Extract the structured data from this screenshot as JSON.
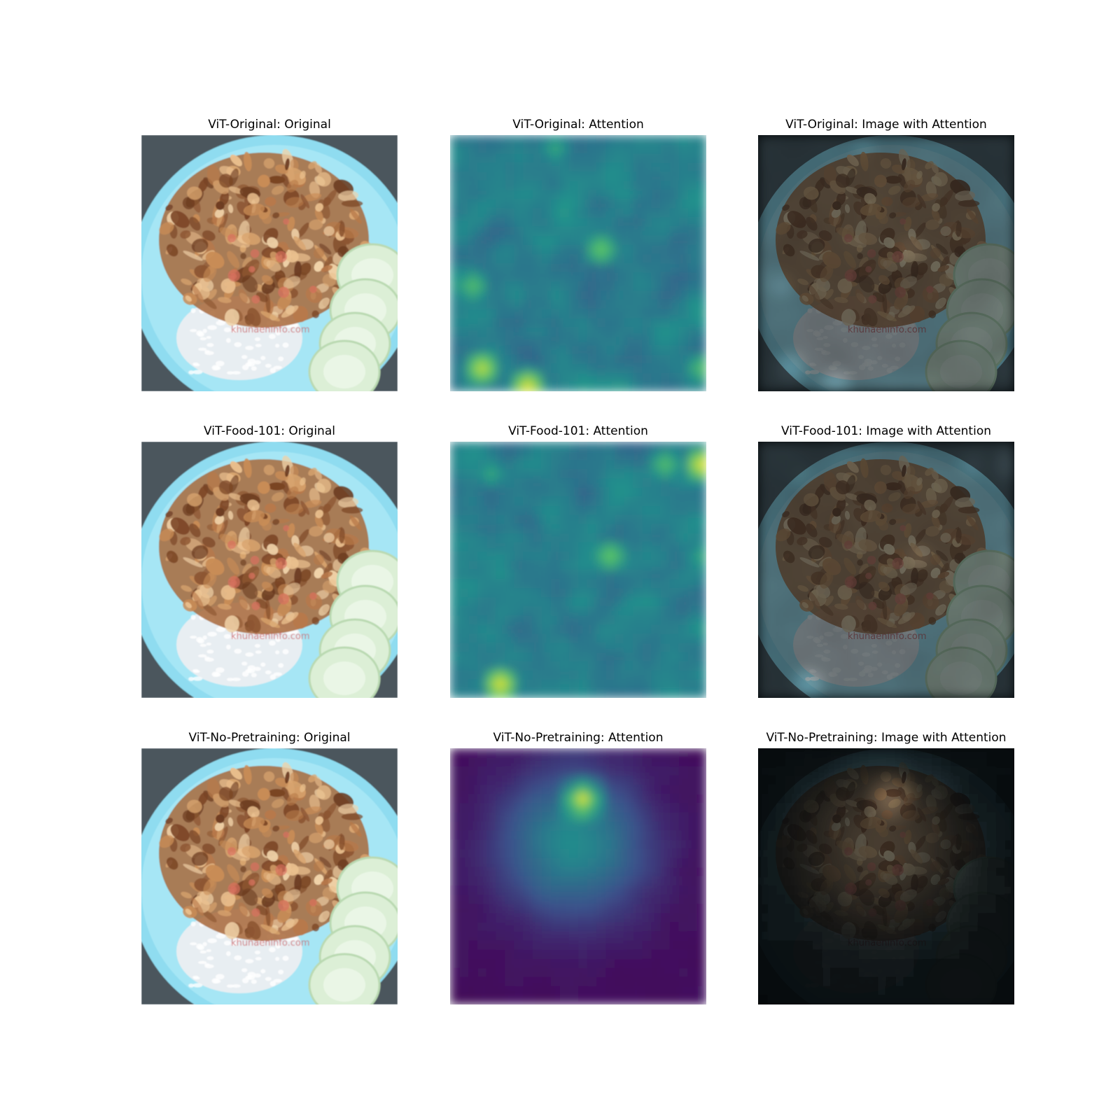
{
  "figure": {
    "rows": [
      {
        "model": "ViT-Original",
        "panels": [
          {
            "title": "ViT-Original: Original",
            "kind": "original"
          },
          {
            "title": "ViT-Original: Attention",
            "kind": "attention"
          },
          {
            "title": "ViT-Original: Image with Attention",
            "kind": "overlay"
          }
        ]
      },
      {
        "model": "ViT-Food-101",
        "panels": [
          {
            "title": "ViT-Food-101: Original",
            "kind": "original"
          },
          {
            "title": "ViT-Food-101: Attention",
            "kind": "attention"
          },
          {
            "title": "ViT-Food-101: Image with Attention",
            "kind": "overlay"
          }
        ]
      },
      {
        "model": "ViT-No-Pretraining",
        "panels": [
          {
            "title": "ViT-No-Pretraining: Original",
            "kind": "original"
          },
          {
            "title": "ViT-No-Pretraining: Attention",
            "kind": "attention"
          },
          {
            "title": "ViT-No-Pretraining: Image with Attention",
            "kind": "overlay"
          }
        ]
      }
    ],
    "watermark_text": "khunaeninfo.com",
    "colors": {
      "plate": "#8fdcf0",
      "fried_food": "#a8673a",
      "rice": "#e8eef2",
      "cucumber": "#dcefd6",
      "viridis_low": "#440154",
      "viridis_mid": "#21918c",
      "viridis_high": "#fde725"
    }
  }
}
